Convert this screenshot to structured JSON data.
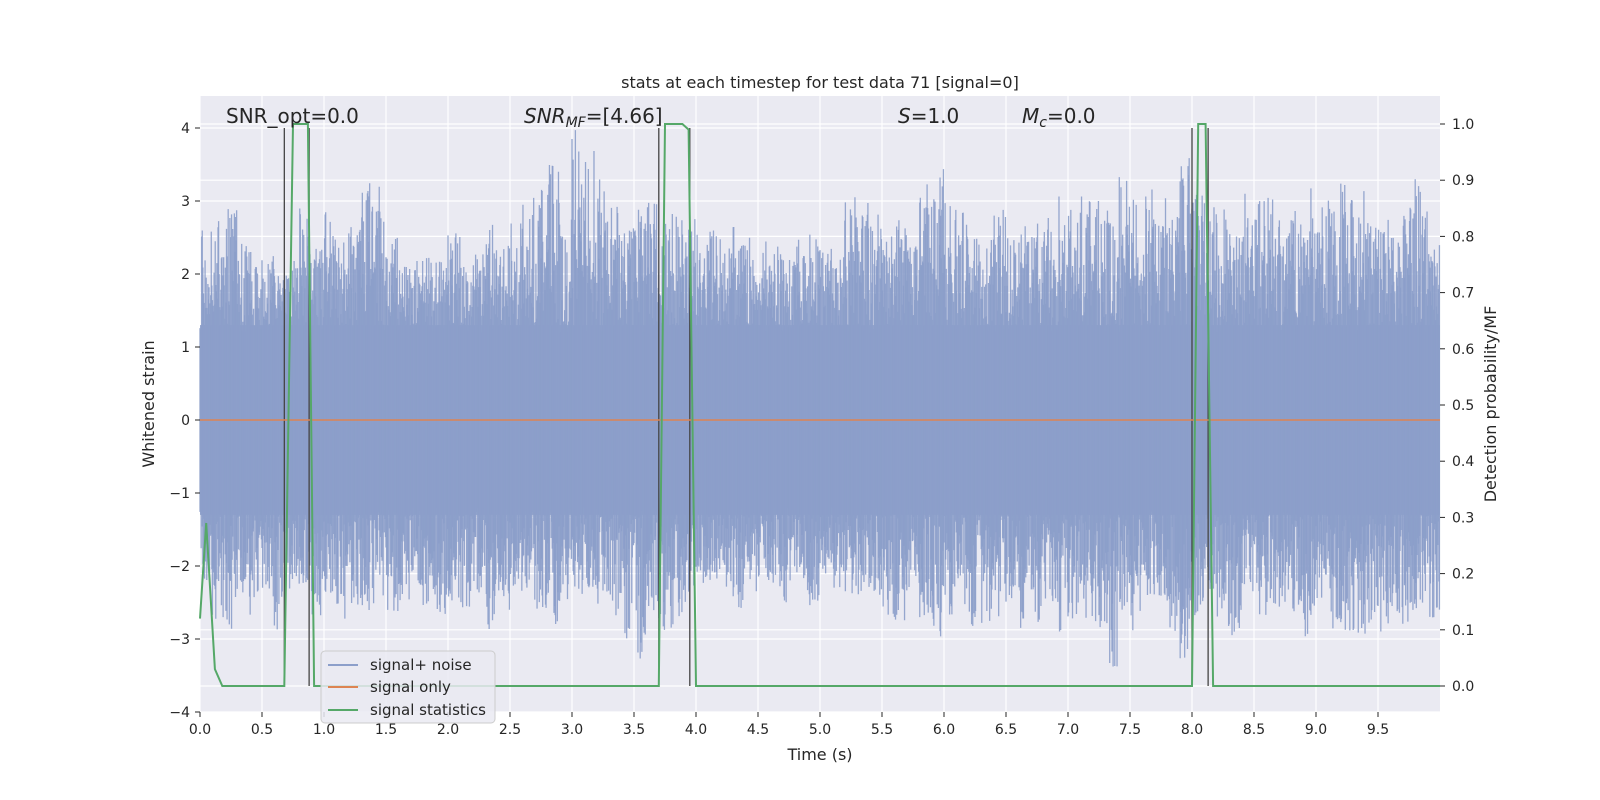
{
  "chart_data": {
    "type": "line",
    "title": "stats at each timestep for test data 71 [signal=0]",
    "xlabel": "Time (s)",
    "ylabel": "Whitened strain",
    "y2label": "Detection probability/MF",
    "xlim": [
      0,
      10
    ],
    "ylim": [
      -4,
      4.4
    ],
    "y2lim": [
      -0.05,
      1.04
    ],
    "xticks": [
      "0.0",
      "0.5",
      "1.0",
      "1.5",
      "2.0",
      "2.5",
      "3.0",
      "3.5",
      "4.0",
      "4.5",
      "5.0",
      "5.5",
      "6.0",
      "6.5",
      "7.0",
      "7.5",
      "8.0",
      "8.5",
      "9.0",
      "9.5"
    ],
    "xtick_values": [
      0,
      0.5,
      1,
      1.5,
      2,
      2.5,
      3,
      3.5,
      4,
      4.5,
      5,
      5.5,
      6,
      6.5,
      7,
      7.5,
      8,
      8.5,
      9,
      9.5
    ],
    "yticks": [
      "−4",
      "−3",
      "−2",
      "−1",
      "0",
      "1",
      "2",
      "3",
      "4"
    ],
    "ytick_values": [
      -4,
      -3,
      -2,
      -1,
      0,
      1,
      2,
      3,
      4
    ],
    "y2ticks": [
      "0.0",
      "0.1",
      "0.2",
      "0.3",
      "0.4",
      "0.5",
      "0.6",
      "0.7",
      "0.8",
      "0.9",
      "1.0"
    ],
    "y2tick_values": [
      0,
      0.1,
      0.2,
      0.3,
      0.4,
      0.5,
      0.6,
      0.7,
      0.8,
      0.9,
      1.0
    ],
    "grid": true,
    "legend_placement": "lower-left",
    "annotations": {
      "snr_opt": "SNR_opt=0.0",
      "snr_mf_main": "SNR",
      "snr_mf_sub": "MF",
      "snr_mf_value": "=[4.66]",
      "s_main": "S",
      "s_value": "=1.0",
      "mc_main": "M",
      "mc_sub": "c",
      "mc_value": "=0.0"
    },
    "series": [
      {
        "name": "signal+ noise",
        "color": "#8c9fca",
        "description_level": "noise amplitude ~ ±1.3 typical, peaks to ~±4",
        "x": [
          0,
          0.1,
          0.2,
          0.3,
          0.4,
          0.5,
          0.6,
          0.7,
          0.8,
          0.9,
          1.0,
          1.1,
          1.2,
          1.3,
          1.4,
          1.5,
          1.6,
          1.7,
          1.8,
          1.9,
          2.0,
          2.1,
          2.2,
          2.3,
          2.4,
          2.5,
          2.6,
          2.7,
          2.8,
          2.9,
          3.0,
          3.1,
          3.2,
          3.3,
          3.4,
          3.5,
          3.6,
          3.7,
          3.8,
          3.9,
          4.0,
          4.1,
          4.2,
          4.3,
          4.4,
          4.5,
          4.6,
          4.7,
          4.8,
          4.9,
          5.0,
          5.1,
          5.2,
          5.3,
          5.4,
          5.5,
          5.6,
          5.7,
          5.8,
          5.9,
          6.0,
          6.1,
          6.2,
          6.3,
          6.4,
          6.5,
          6.6,
          6.7,
          6.8,
          6.9,
          7.0,
          7.1,
          7.2,
          7.3,
          7.4,
          7.5,
          7.6,
          7.7,
          7.8,
          7.9,
          8.0,
          8.1,
          8.2,
          8.3,
          8.4,
          8.5,
          8.6,
          8.7,
          8.8,
          8.9,
          9.0,
          9.1,
          9.2,
          9.3,
          9.4,
          9.5,
          9.6,
          9.7,
          9.8,
          9.9
        ],
        "upper": [
          2.6,
          2.8,
          2.9,
          2.5,
          2.4,
          2.3,
          2.0,
          2.2,
          2.9,
          2.4,
          2.9,
          2.6,
          2.8,
          3.3,
          3.4,
          2.6,
          2.1,
          2.2,
          2.3,
          2.2,
          2.6,
          2.1,
          2.3,
          2.7,
          2.4,
          3.0,
          3.2,
          3.4,
          3.5,
          2.9,
          4.0,
          3.8,
          3.3,
          3.0,
          2.8,
          2.9,
          3.1,
          2.7,
          2.9,
          2.8,
          2.7,
          2.6,
          2.4,
          2.7,
          2.5,
          2.5,
          2.4,
          2.2,
          2.5,
          2.6,
          2.4,
          2.3,
          3.1,
          3.0,
          2.9,
          2.6,
          2.8,
          2.4,
          3.3,
          3.5,
          3.0,
          3.0,
          2.5,
          2.6,
          2.9,
          2.5,
          2.7,
          2.7,
          2.9,
          3.3,
          3.0,
          3.1,
          3.0,
          3.0,
          3.4,
          3.1,
          3.2,
          3.1,
          2.9,
          3.6,
          3.1,
          3.0,
          2.9,
          2.6,
          3.2,
          3.0,
          3.1,
          2.8,
          3.0,
          3.4,
          3.0,
          3.1,
          3.3,
          3.2,
          2.7,
          2.8,
          2.5,
          3.0,
          3.4,
          2.4
        ],
        "lower": [
          -2.2,
          -2.8,
          -2.9,
          -2.5,
          -2.7,
          -2.6,
          -2.9,
          -2.4,
          -2.3,
          -2.9,
          -2.4,
          -2.8,
          -2.6,
          -2.7,
          -2.6,
          -2.8,
          -2.5,
          -2.3,
          -2.6,
          -2.7,
          -2.5,
          -2.6,
          -2.4,
          -2.9,
          -2.6,
          -2.5,
          -2.3,
          -2.6,
          -2.8,
          -2.5,
          -2.4,
          -2.3,
          -2.6,
          -2.7,
          -3.0,
          -3.3,
          -2.7,
          -2.9,
          -2.9,
          -2.5,
          -2.4,
          -2.2,
          -2.3,
          -2.6,
          -2.4,
          -2.2,
          -2.3,
          -2.5,
          -2.2,
          -2.6,
          -2.2,
          -2.3,
          -2.6,
          -2.4,
          -2.5,
          -2.7,
          -2.8,
          -2.5,
          -2.9,
          -3.0,
          -2.8,
          -2.6,
          -2.9,
          -2.8,
          -2.7,
          -2.6,
          -2.9,
          -2.8,
          -2.5,
          -3.0,
          -2.8,
          -2.9,
          -3.0,
          -3.4,
          -2.6,
          -2.9,
          -2.7,
          -2.6,
          -2.9,
          -3.4,
          -2.7,
          -2.4,
          -2.9,
          -3.0,
          -2.5,
          -2.7,
          -2.8,
          -2.6,
          -2.7,
          -3.0,
          -2.5,
          -2.9,
          -3.0,
          -3.1,
          -2.8,
          -2.9,
          -2.7,
          -2.8,
          -2.6,
          -2.8
        ]
      },
      {
        "name": "signal only",
        "color": "#dd8452",
        "x": [
          0,
          10
        ],
        "y": [
          0,
          0
        ]
      },
      {
        "name": "signal statistics",
        "color": "#55a868",
        "axis": "right",
        "x": [
          0,
          0.05,
          0.12,
          0.18,
          0.5,
          0.68,
          0.75,
          0.87,
          0.92,
          1.0,
          2.0,
          3.0,
          3.7,
          3.75,
          3.82,
          3.89,
          3.94,
          4.0,
          5.0,
          6.0,
          7.0,
          8.0,
          8.05,
          8.11,
          8.17,
          8.2,
          9.0,
          10.0
        ],
        "y": [
          0.12,
          0.29,
          0.03,
          0.0,
          0.0,
          0.0,
          1.0,
          1.0,
          0.0,
          0.0,
          0.0,
          0.0,
          0.0,
          1.0,
          1.0,
          1.0,
          0.99,
          0.0,
          0.0,
          0.0,
          0.0,
          0.0,
          1.0,
          1.0,
          0.0,
          0.0,
          0.0,
          0.0
        ]
      }
    ],
    "vlines": [
      0.68,
      0.88,
      3.7,
      3.95,
      8.0,
      8.13
    ]
  }
}
